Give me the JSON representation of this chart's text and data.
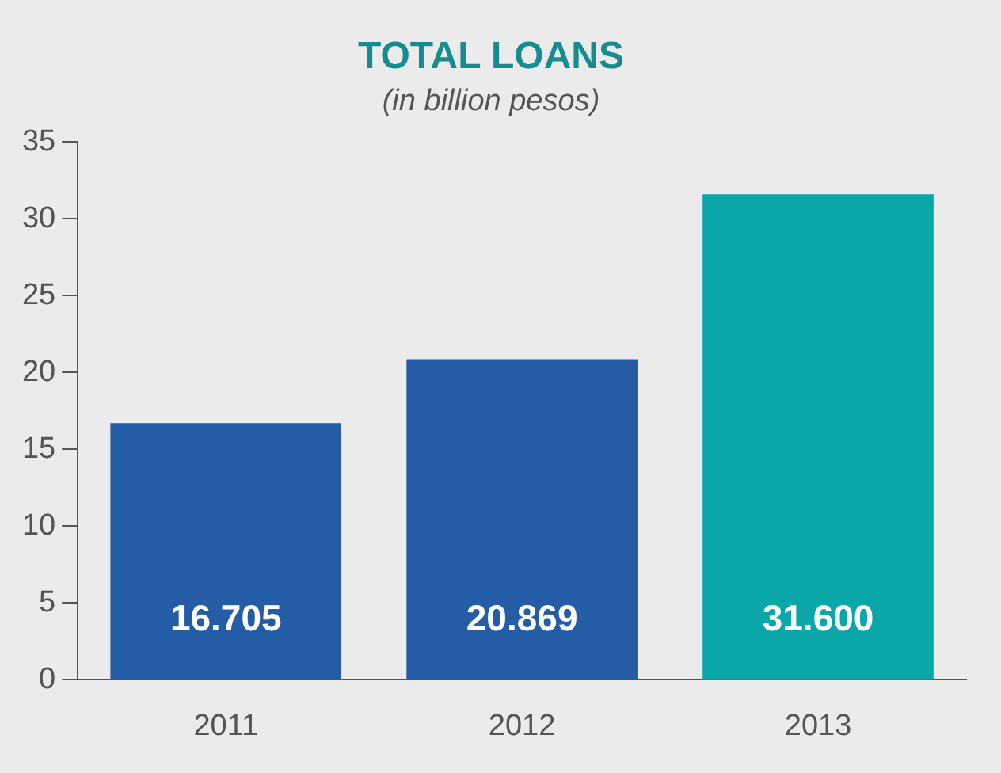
{
  "chart_data": {
    "type": "bar",
    "title": "TOTAL LOANS",
    "subtitle": "(in billion pesos)",
    "categories": [
      "2011",
      "2012",
      "2013"
    ],
    "values": [
      16.705,
      20.869,
      31.6
    ],
    "colors": [
      "#245ca6",
      "#245ca6",
      "#0aa6a8"
    ],
    "value_labels": [
      "16.705",
      "20.869",
      "31.600"
    ],
    "ylim": [
      0,
      35
    ],
    "yticks": [
      0,
      5,
      10,
      15,
      20,
      25,
      30,
      35
    ],
    "grid": false,
    "legend": false
  }
}
